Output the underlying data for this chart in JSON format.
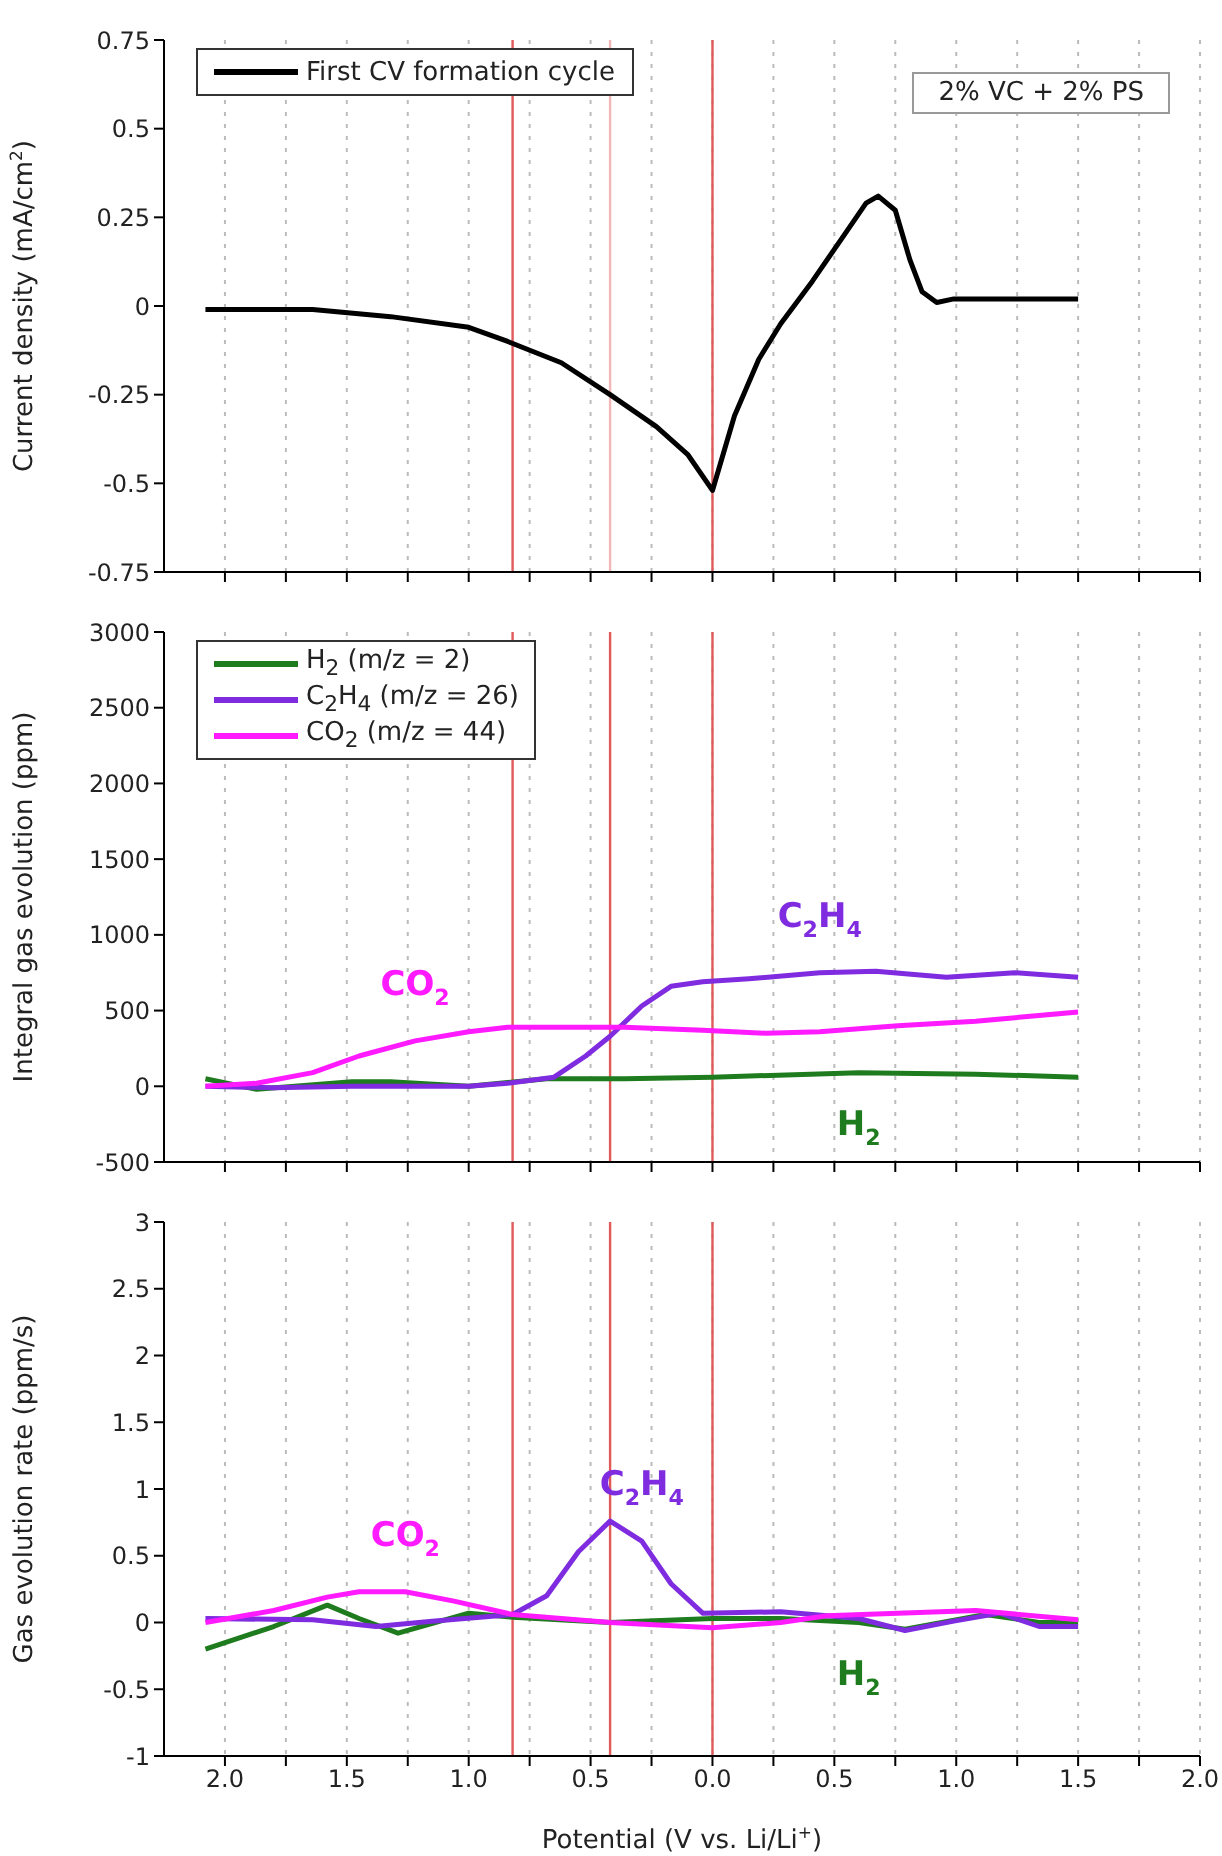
{
  "chart_data": [
    {
      "type": "line",
      "ylabel": "Current density (mA/cm$^{2}$)",
      "xlim": [
        -2.25,
        2.0
      ],
      "ylim": [
        -0.75,
        0.75
      ],
      "yticks": [
        -0.75,
        -0.5,
        -0.25,
        0,
        0.25,
        0.5,
        0.75
      ],
      "xticks": [
        -2,
        -1.75,
        -1.5,
        -1.25,
        -1,
        -0.75,
        -0.5,
        -0.25,
        0,
        0.25,
        0.5,
        0.75,
        1,
        1.25,
        1.5,
        1.75,
        2
      ],
      "tick_labels": "y",
      "grid": "x",
      "legend": "top left",
      "line_style": "solid",
      "marker": "none",
      "ref_lines": [
        {
          "axis": "x",
          "value": -0.82,
          "color": "#e05a5a"
        },
        {
          "axis": "x",
          "value": -0.42,
          "color": "#f2b8b8"
        },
        {
          "axis": "x",
          "value": 0,
          "color": "#e05a5a"
        }
      ],
      "annotations": [
        "2% VC + 2% PS"
      ],
      "series": [
        {
          "name": "First CV formation cycle",
          "color": "#000000",
          "x": [
            -2.08,
            -1.64,
            -1.32,
            -1.0,
            -0.84,
            -0.62,
            -0.42,
            -0.23,
            -0.1,
            0,
            0.09,
            0.19,
            0.28,
            0.41,
            0.54,
            0.63,
            0.68,
            0.75,
            0.81,
            0.86,
            0.92,
            0.99,
            1.5
          ],
          "values": [
            -0.01,
            -0.01,
            -0.03,
            -0.06,
            -0.1,
            -0.16,
            -0.25,
            -0.34,
            -0.42,
            -0.52,
            -0.31,
            -0.15,
            -0.05,
            0.07,
            0.2,
            0.29,
            0.31,
            0.27,
            0.13,
            0.04,
            0.01,
            0.02,
            0.02
          ]
        }
      ]
    },
    {
      "type": "line",
      "ylabel": "Integral gas evolution (ppm)",
      "xlim": [
        -2.25,
        2.0
      ],
      "ylim": [
        -500,
        3000
      ],
      "yticks": [
        -500,
        0,
        500,
        1000,
        1500,
        2000,
        2500,
        3000
      ],
      "xticks": [
        -2,
        -1.75,
        -1.5,
        -1.25,
        -1,
        -0.75,
        -0.5,
        -0.25,
        0,
        0.25,
        0.5,
        0.75,
        1,
        1.25,
        1.5,
        1.75,
        2
      ],
      "tick_labels": "y",
      "grid": "x",
      "legend": "top left",
      "line_style": "solid",
      "marker": "none",
      "ref_lines": [
        {
          "axis": "x",
          "value": -0.82,
          "color": "#e05a5a"
        },
        {
          "axis": "x",
          "value": -0.42,
          "color": "#e05a5a"
        },
        {
          "axis": "x",
          "value": 0,
          "color": "#e05a5a"
        }
      ],
      "annotations": [
        {
          "text": "H$_{2}$",
          "x": 0.6,
          "y": 90
        },
        {
          "text": "C$_{2}$H$_{4}$",
          "x": 0.44,
          "y": 750
        },
        {
          "text": "CO$_{2}$",
          "x": -1.22,
          "y": 300
        }
      ],
      "series": [
        {
          "name": "H$_{2}$ (m/z = 2)",
          "color": "#1e7b1e",
          "x": [
            -2.08,
            -1.87,
            -1.48,
            -1.32,
            -1.0,
            -0.68,
            -0.36,
            0,
            0.6,
            1.08,
            1.5
          ],
          "values": [
            50,
            -20,
            30,
            30,
            0,
            50,
            50,
            60,
            90,
            80,
            60
          ]
        },
        {
          "name": "C$_{2}$H$_{4}$ (m/z = 26)",
          "color": "#7f2be0",
          "x": [
            -2.08,
            -1.8,
            -1.48,
            -1.0,
            -0.84,
            -0.65,
            -0.52,
            -0.42,
            -0.29,
            -0.17,
            -0.04,
            0.15,
            0.44,
            0.67,
            0.96,
            1.24,
            1.5
          ],
          "values": [
            0,
            -10,
            0,
            0,
            20,
            60,
            200,
            330,
            530,
            660,
            690,
            710,
            750,
            760,
            720,
            750,
            720
          ]
        },
        {
          "name": "CO$_{2}$ (m/z = 44)",
          "color": "#ff1aff",
          "x": [
            -2.08,
            -1.87,
            -1.64,
            -1.45,
            -1.22,
            -1.0,
            -0.84,
            -0.52,
            -0.36,
            -0.04,
            0.22,
            0.44,
            0.76,
            1.08,
            1.5
          ],
          "values": [
            0,
            20,
            90,
            200,
            300,
            360,
            390,
            390,
            390,
            370,
            350,
            360,
            400,
            430,
            490
          ]
        }
      ]
    },
    {
      "type": "line",
      "ylabel": "Gas evolution rate (ppm/s)",
      "xlabel": "Potential (V vs. Li/Li$^{+}$)",
      "xlim": [
        -2.25,
        2.0
      ],
      "ylim": [
        -1,
        3
      ],
      "yticks": [
        -1,
        -0.5,
        0,
        0.5,
        1,
        1.5,
        2,
        2.5,
        3
      ],
      "xticks": [
        {
          "value": -2,
          "label": "2.0"
        },
        {
          "value": -1.75,
          "label": null
        },
        {
          "value": -1.5,
          "label": "1.5"
        },
        {
          "value": -1.25,
          "label": null
        },
        {
          "value": -1,
          "label": "1.0"
        },
        {
          "value": -0.75,
          "label": null
        },
        {
          "value": -0.5,
          "label": "0.5"
        },
        {
          "value": -0.25,
          "label": null
        },
        {
          "value": 0,
          "label": "0.0"
        },
        {
          "value": 0.25,
          "label": null
        },
        {
          "value": 0.5,
          "label": "0.5"
        },
        {
          "value": 0.75,
          "label": null
        },
        {
          "value": 1,
          "label": "1.0"
        },
        {
          "value": 1.25,
          "label": null
        },
        {
          "value": 1.5,
          "label": "1.5"
        },
        {
          "value": 1.75,
          "label": null
        },
        {
          "value": 2,
          "label": "2.0"
        }
      ],
      "grid": "x",
      "line_style": "solid",
      "marker": "none",
      "ref_lines": [
        {
          "axis": "x",
          "value": -0.82,
          "color": "#e05a5a"
        },
        {
          "axis": "x",
          "value": -0.42,
          "color": "#e05a5a"
        },
        {
          "axis": "x",
          "value": 0,
          "color": "#e05a5a"
        }
      ],
      "annotations": [
        {
          "text": "H$_{2}$",
          "x": 0.6,
          "y": 0
        },
        {
          "text": "C$_{2}$H$_{4}$",
          "x": -0.29,
          "y": 0.61
        },
        {
          "text": "CO$_{2}$",
          "x": -1.26,
          "y": 0.23
        }
      ],
      "series": [
        {
          "color": "#1e7b1e",
          "x": [
            -2.08,
            -1.8,
            -1.58,
            -1.45,
            -1.29,
            -1.0,
            -0.82,
            -0.42,
            0,
            0.28,
            0.6,
            0.79,
            1.12,
            1.34,
            1.5
          ],
          "values": [
            -0.2,
            -0.03,
            0.13,
            0.03,
            -0.08,
            0.07,
            0.04,
            0,
            0.03,
            0.03,
            0,
            -0.05,
            0.06,
            0,
            0
          ]
        },
        {
          "color": "#7f2be0",
          "x": [
            -2.08,
            -1.64,
            -1.38,
            -1.15,
            -0.82,
            -0.68,
            -0.55,
            -0.42,
            -0.29,
            -0.17,
            -0.04,
            0.28,
            0.6,
            0.79,
            0.99,
            1.18,
            1.34,
            1.5
          ],
          "values": [
            0.03,
            0.02,
            -0.03,
            0.01,
            0.06,
            0.2,
            0.53,
            0.76,
            0.61,
            0.29,
            0.07,
            0.08,
            0.03,
            -0.06,
            0.01,
            0.07,
            -0.03,
            -0.03
          ]
        },
        {
          "color": "#ff1aff",
          "x": [
            -2.08,
            -1.8,
            -1.58,
            -1.45,
            -1.26,
            -1.06,
            -0.82,
            -0.42,
            0,
            0.28,
            0.47,
            1.08,
            1.5
          ],
          "values": [
            0,
            0.09,
            0.19,
            0.23,
            0.23,
            0.16,
            0.06,
            0,
            -0.04,
            0,
            0.05,
            0.09,
            0.02
          ]
        }
      ]
    }
  ]
}
